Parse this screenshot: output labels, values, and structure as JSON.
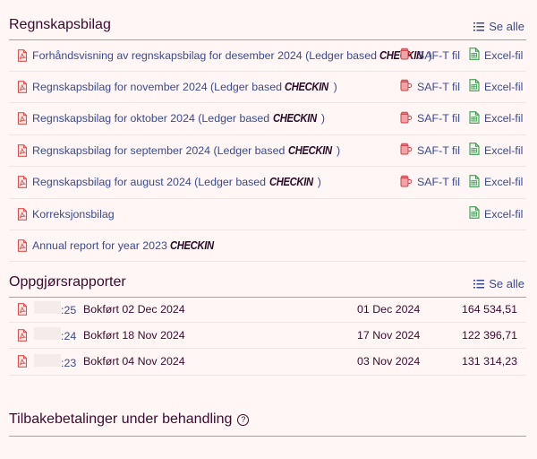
{
  "ledger": {
    "title": "Regnskapsbilag",
    "see_all": "Se alle",
    "rows": [
      {
        "text": "Forhåndsvisning av regnskapsbilag for desember 2024 (Ledger based ",
        "brand": "CHECKIN",
        "close": ")",
        "saft": "SAF-T fil",
        "excel": "Excel-fil"
      },
      {
        "text": "Regnskapsbilag for november 2024 (Ledger based ",
        "brand": "CHECKIN",
        "close": ")",
        "saft": "SAF-T fil",
        "excel": "Excel-fil"
      },
      {
        "text": "Regnskapsbilag for oktober 2024 (Ledger based ",
        "brand": "CHECKIN",
        "close": ")",
        "saft": "SAF-T fil",
        "excel": "Excel-fil"
      },
      {
        "text": "Regnskapsbilag for september 2024 (Ledger based ",
        "brand": "CHECKIN",
        "close": ")",
        "saft": "SAF-T fil",
        "excel": "Excel-fil"
      },
      {
        "text": "Regnskapsbilag for august 2024 (Ledger based ",
        "brand": "CHECKIN",
        "close": ")",
        "saft": "SAF-T fil",
        "excel": "Excel-fil"
      },
      {
        "text": "Korreksjonsbilag",
        "brand": "",
        "close": "",
        "saft": "",
        "excel": "Excel-fil"
      },
      {
        "text": "Annual report for year 2023 ",
        "brand": "CHECKIN",
        "close": "",
        "saft": "",
        "excel": ""
      }
    ]
  },
  "settlement": {
    "title": "Oppgjørsrapporter",
    "see_all": "Se alle",
    "rows": [
      {
        "id": ":25",
        "booked": "Bokført 02 Dec 2024",
        "date": "01 Dec 2024",
        "amount": "164 534,51"
      },
      {
        "id": ":24",
        "booked": "Bokført 18 Nov 2024",
        "date": "17 Nov 2024",
        "amount": "122 396,71"
      },
      {
        "id": ":23",
        "booked": "Bokført 04 Nov 2024",
        "date": "03 Nov 2024",
        "amount": "131 314,23"
      }
    ]
  },
  "refunds": {
    "title": "Tilbakebetalinger under behandling",
    "help": "?"
  },
  "colors": {
    "background": "#fff6f5",
    "link": "#3b4a8f",
    "text": "#3b0a2e",
    "pdf_icon": "#d9534f",
    "excel_icon": "#3f9b4f"
  },
  "icons": {
    "pdf": "pdf-file-icon",
    "saft": "saft-jug-icon",
    "excel": "excel-file-icon",
    "list": "list-icon",
    "help": "question-circle-icon"
  }
}
